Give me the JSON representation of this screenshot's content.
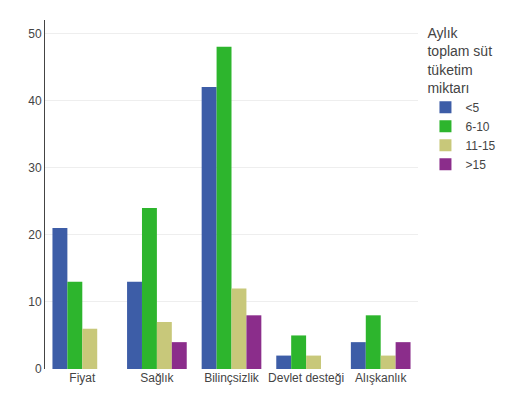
{
  "chart_data": {
    "type": "bar",
    "categories": [
      "Fiyat",
      "Sağlık",
      "Bilinçsizlik",
      "Devlet desteği",
      "Alışkanlık"
    ],
    "series": [
      {
        "name": "<5",
        "color": "#3d5da7",
        "values": [
          21,
          13,
          42,
          2,
          4
        ]
      },
      {
        "name": "6-10",
        "color": "#2db52d",
        "values": [
          13,
          24,
          48,
          5,
          8
        ]
      },
      {
        "name": "11-15",
        "color": "#c8c87a",
        "values": [
          6,
          7,
          12,
          2,
          2
        ]
      },
      {
        "name": ">15",
        "color": "#8b2d8b",
        "values": [
          0,
          4,
          8,
          0,
          4
        ]
      }
    ],
    "legend_title": "Aylık\ntoplam süt\ntüketim\nmiktarı",
    "legend": "right",
    "ylim": [
      0,
      52
    ],
    "yticks": [
      0,
      10,
      20,
      30,
      40,
      50
    ],
    "grid": true
  }
}
